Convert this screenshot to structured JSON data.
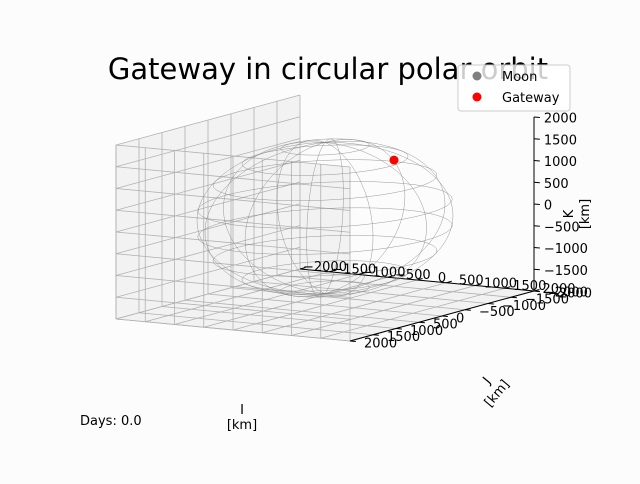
{
  "chart_data": {
    "type": "scatter",
    "projection": "3d",
    "title": "Gateway in circular polar orbit",
    "xlabel": "I\n[km]",
    "ylabel": "J\n[km]",
    "zlabel": "K\n[km]",
    "xlim": [
      -2000,
      2000
    ],
    "ylim": [
      -2000,
      2000
    ],
    "zlim": [
      -2000,
      2000
    ],
    "xticks": [
      "−2000",
      "−1500",
      "−1000",
      "−500",
      "0",
      "500",
      "1000",
      "1500",
      "2000"
    ],
    "yticks": [
      "−2000",
      "−1500",
      "−1000",
      "−500",
      "0",
      "500",
      "1000",
      "1500",
      "2000"
    ],
    "zticks": [
      "−2000",
      "−1500",
      "−1000",
      "−500",
      "0",
      "500",
      "1000",
      "1500",
      "2000"
    ],
    "grid": true,
    "legend_position": "top-right",
    "series": [
      {
        "name": "Moon",
        "marker": "o",
        "color": "#808080",
        "shape": "wireframe sphere",
        "radius_km": 1737
      },
      {
        "name": "Gateway",
        "marker": "o",
        "color": "#ff0000",
        "points": [
          {
            "x": 0,
            "y": -1500,
            "z": 900
          }
        ]
      }
    ]
  },
  "days_label": "Days: 0.0",
  "colors": {
    "grid": "#b0b0b0",
    "pane": "#f2f2f2",
    "axis": "#000000"
  }
}
